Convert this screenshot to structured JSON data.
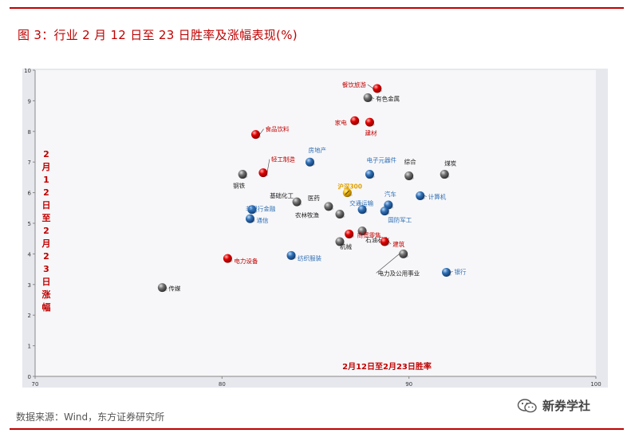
{
  "header": {
    "title": "图 3：行业 2 月 12 日至 23 日胜率及涨幅表现(%)"
  },
  "footer": {
    "source": "数据来源：Wind，东方证券研究所",
    "watermark": "新券学社"
  },
  "colors": {
    "red": "#e00000",
    "gray": "#707070",
    "blue": "#2f6fb5",
    "gold": "#f0b400",
    "label_red": "#c00000",
    "label_blue": "#2f6fb5",
    "label_black": "#222222",
    "label_gold": "#e0a000",
    "plot_bg": "#f2f2f4"
  },
  "chart_data": {
    "type": "scatter",
    "xlabel": "2月12日至2月23日胜率",
    "ylabel": "2月12日至2月23日涨幅",
    "xlim": [
      70,
      100
    ],
    "ylim": [
      0,
      10
    ],
    "x_ticks": [
      "70",
      "80",
      "90",
      "100"
    ],
    "y_ticks": [
      "0",
      "1",
      "2",
      "3",
      "4",
      "5",
      "6",
      "7",
      "8",
      "9",
      "10"
    ],
    "grid": false,
    "points": [
      {
        "label": "餐饮旅游",
        "x": 88.3,
        "y": 9.4,
        "color": "red"
      },
      {
        "label": "有色金属",
        "x": 87.8,
        "y": 9.1,
        "color": "gray"
      },
      {
        "label": "家电",
        "x": 87.1,
        "y": 8.35,
        "color": "red"
      },
      {
        "label": "建材",
        "x": 87.9,
        "y": 8.3,
        "color": "red"
      },
      {
        "label": "食品饮料",
        "x": 81.8,
        "y": 7.9,
        "color": "red"
      },
      {
        "label": "房地产",
        "x": 84.7,
        "y": 7.0,
        "color": "blue"
      },
      {
        "label": "煤炭",
        "x": 91.9,
        "y": 6.6,
        "color": "gray"
      },
      {
        "label": "综合",
        "x": 90.0,
        "y": 6.55,
        "color": "gray"
      },
      {
        "label": "电子元器件",
        "x": 87.9,
        "y": 6.6,
        "color": "blue"
      },
      {
        "label": "轻工制造",
        "x": 82.2,
        "y": 6.65,
        "color": "red"
      },
      {
        "label": "钢铁",
        "x": 81.1,
        "y": 6.6,
        "color": "gray"
      },
      {
        "label": "沪深300",
        "x": 86.7,
        "y": 6.0,
        "color": "gold"
      },
      {
        "label": "计算机",
        "x": 90.6,
        "y": 5.9,
        "color": "blue"
      },
      {
        "label": "基础化工",
        "x": 84.0,
        "y": 5.7,
        "color": "gray"
      },
      {
        "label": "汽车",
        "x": 88.9,
        "y": 5.6,
        "color": "blue"
      },
      {
        "label": "医药",
        "x": 85.7,
        "y": 5.55,
        "color": "gray"
      },
      {
        "label": "交通运输",
        "x": 87.5,
        "y": 5.45,
        "color": "blue"
      },
      {
        "label": "非银行金融",
        "x": 81.6,
        "y": 5.45,
        "color": "blue"
      },
      {
        "label": "国防军工",
        "x": 88.7,
        "y": 5.4,
        "color": "blue"
      },
      {
        "label": "农林牧渔",
        "x": 86.3,
        "y": 5.3,
        "color": "gray"
      },
      {
        "label": "通信",
        "x": 81.5,
        "y": 5.15,
        "color": "blue"
      },
      {
        "label": "石油石化",
        "x": 87.5,
        "y": 4.75,
        "color": "gray"
      },
      {
        "label": "商贸零售",
        "x": 86.8,
        "y": 4.65,
        "color": "red"
      },
      {
        "label": "机械",
        "x": 86.3,
        "y": 4.4,
        "color": "gray"
      },
      {
        "label": "建筑",
        "x": 88.7,
        "y": 4.4,
        "color": "red"
      },
      {
        "label": "电力及公用事业",
        "x": 89.7,
        "y": 4.0,
        "color": "gray"
      },
      {
        "label": "纺织服装",
        "x": 83.7,
        "y": 3.95,
        "color": "blue"
      },
      {
        "label": "电力设备",
        "x": 80.3,
        "y": 3.85,
        "color": "red"
      },
      {
        "label": "银行",
        "x": 92.0,
        "y": 3.4,
        "color": "blue"
      },
      {
        "label": "传媒",
        "x": 76.8,
        "y": 2.9,
        "color": "gray"
      }
    ]
  }
}
